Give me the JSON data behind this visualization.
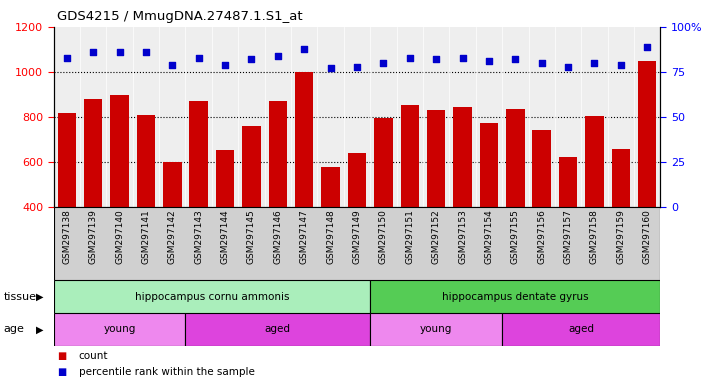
{
  "title": "GDS4215 / MmugDNA.27487.1.S1_at",
  "samples": [
    "GSM297138",
    "GSM297139",
    "GSM297140",
    "GSM297141",
    "GSM297142",
    "GSM297143",
    "GSM297144",
    "GSM297145",
    "GSM297146",
    "GSM297147",
    "GSM297148",
    "GSM297149",
    "GSM297150",
    "GSM297151",
    "GSM297152",
    "GSM297153",
    "GSM297154",
    "GSM297155",
    "GSM297156",
    "GSM297157",
    "GSM297158",
    "GSM297159",
    "GSM297160"
  ],
  "counts": [
    820,
    880,
    900,
    810,
    600,
    870,
    655,
    760,
    870,
    1000,
    580,
    640,
    795,
    855,
    830,
    845,
    775,
    835,
    745,
    625,
    805,
    660,
    1050
  ],
  "percentile": [
    83,
    86,
    86,
    86,
    79,
    83,
    79,
    82,
    84,
    88,
    77,
    78,
    80,
    83,
    82,
    83,
    81,
    82,
    80,
    78,
    80,
    79,
    89
  ],
  "ylim_left": [
    400,
    1200
  ],
  "ylim_right": [
    0,
    100
  ],
  "yticks_left": [
    400,
    600,
    800,
    1000,
    1200
  ],
  "yticks_right": [
    0,
    25,
    50,
    75,
    100
  ],
  "bar_color": "#cc0000",
  "dot_color": "#0000cc",
  "bg_color": "#d8d8d8",
  "tissue_groups": [
    {
      "label": "hippocampus cornu ammonis",
      "start": 0,
      "end": 12,
      "color": "#aaeebb"
    },
    {
      "label": "hippocampus dentate gyrus",
      "start": 12,
      "end": 23,
      "color": "#55cc55"
    }
  ],
  "age_groups": [
    {
      "label": "young",
      "start": 0,
      "end": 5,
      "color": "#ee88ee"
    },
    {
      "label": "aged",
      "start": 5,
      "end": 12,
      "color": "#dd44dd"
    },
    {
      "label": "young",
      "start": 12,
      "end": 17,
      "color": "#ee88ee"
    },
    {
      "label": "aged",
      "start": 17,
      "end": 23,
      "color": "#dd44dd"
    }
  ],
  "tissue_label": "tissue",
  "age_label": "age",
  "legend_count_label": "count",
  "legend_pct_label": "percentile rank within the sample"
}
